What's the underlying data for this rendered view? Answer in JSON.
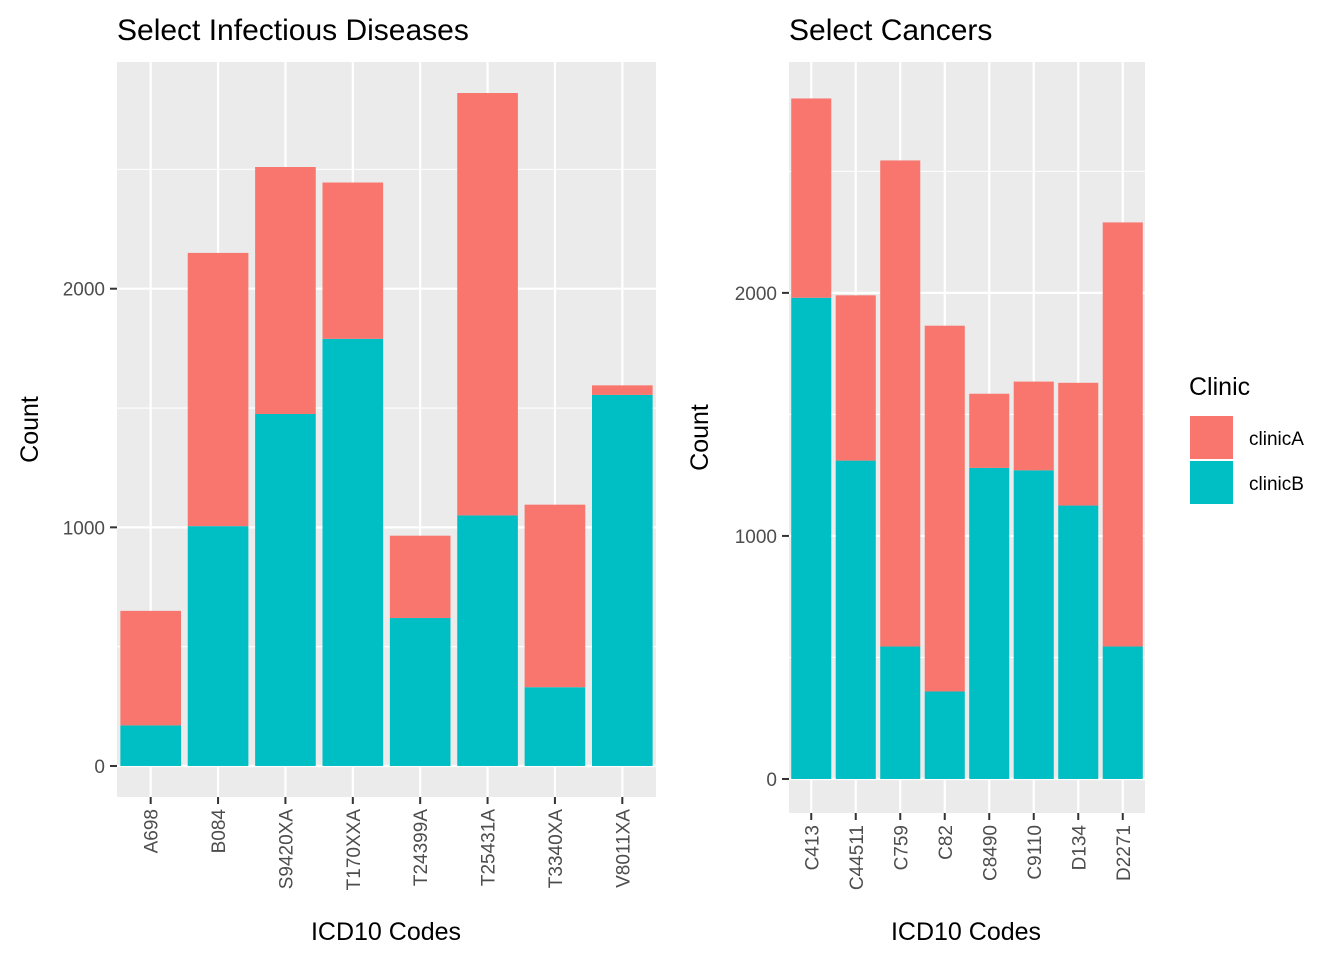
{
  "colors": {
    "clinicA": "#F8766D",
    "clinicB": "#00BFC4",
    "panel": "#EBEBEB",
    "grid": "#FFFFFF"
  },
  "legend": {
    "title": "Clinic",
    "items": [
      {
        "label": "clinicA",
        "color": "#F8766D"
      },
      {
        "label": "clinicB",
        "color": "#00BFC4"
      }
    ]
  },
  "chart_data": [
    {
      "type": "bar",
      "stacked": true,
      "title": "Select Infectious Diseases",
      "xlabel": "ICD10 Codes",
      "ylabel": "Count",
      "ylim": [
        -130,
        2950
      ],
      "yticks": [
        0,
        1000,
        2000
      ],
      "categories": [
        "A698",
        "B084",
        "S9420XA",
        "T170XXA",
        "T24399A",
        "T25431A",
        "T3340XA",
        "V8011XA"
      ],
      "series": [
        {
          "name": "clinicB",
          "values": [
            170,
            1005,
            1475,
            1790,
            620,
            1050,
            330,
            1555
          ]
        },
        {
          "name": "clinicA",
          "values": [
            480,
            1145,
            1035,
            655,
            345,
            1770,
            765,
            40
          ]
        }
      ]
    },
    {
      "type": "bar",
      "stacked": true,
      "title": "Select Cancers",
      "xlabel": "ICD10 Codes",
      "ylabel": "Count",
      "ylim": [
        -140,
        2950
      ],
      "yticks": [
        0,
        1000,
        2000
      ],
      "categories": [
        "C413",
        "C44511",
        "C759",
        "C82",
        "C8490",
        "C9110",
        "D134",
        "D2271"
      ],
      "series": [
        {
          "name": "clinicB",
          "values": [
            1980,
            1310,
            545,
            360,
            1280,
            1270,
            1125,
            545
          ]
        },
        {
          "name": "clinicA",
          "values": [
            820,
            680,
            2000,
            1505,
            305,
            365,
            505,
            1745
          ]
        }
      ]
    }
  ]
}
